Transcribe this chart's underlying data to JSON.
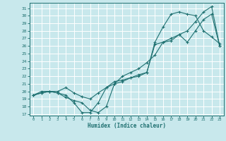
{
  "xlabel": "Humidex (Indice chaleur)",
  "background_color": "#c8e8ec",
  "grid_color": "#ffffff",
  "line_color": "#1e7070",
  "xlim": [
    -0.5,
    23.5
  ],
  "ylim": [
    16.8,
    31.7
  ],
  "xticks": [
    0,
    1,
    2,
    3,
    4,
    5,
    6,
    7,
    8,
    9,
    10,
    11,
    12,
    13,
    14,
    15,
    16,
    17,
    18,
    19,
    20,
    21,
    22,
    23
  ],
  "yticks": [
    17,
    18,
    19,
    20,
    21,
    22,
    23,
    24,
    25,
    26,
    27,
    28,
    29,
    30,
    31
  ],
  "line1_x": [
    0,
    1,
    2,
    3,
    4,
    5,
    6,
    7,
    8,
    9,
    10,
    11,
    12,
    13,
    14,
    15,
    16,
    17,
    18,
    19,
    20,
    21,
    22,
    23
  ],
  "line1_y": [
    19.5,
    20.0,
    20.0,
    19.8,
    19.5,
    18.5,
    17.2,
    17.2,
    18.5,
    20.5,
    21.3,
    21.5,
    21.8,
    22.0,
    22.5,
    26.2,
    26.5,
    26.7,
    27.5,
    26.5,
    28.0,
    29.5,
    30.2,
    26.0
  ],
  "line2_x": [
    0,
    1,
    2,
    3,
    4,
    5,
    6,
    7,
    8,
    9,
    10,
    11,
    12,
    13,
    14,
    15,
    16,
    17,
    18,
    19,
    20,
    21,
    22,
    23
  ],
  "line2_y": [
    19.5,
    19.8,
    20.0,
    19.8,
    19.2,
    18.8,
    18.5,
    17.5,
    17.2,
    18.0,
    21.0,
    21.3,
    21.8,
    22.2,
    22.5,
    26.5,
    28.5,
    30.2,
    30.5,
    30.2,
    30.0,
    28.0,
    27.2,
    26.3
  ],
  "line3_x": [
    0,
    1,
    2,
    3,
    4,
    5,
    6,
    7,
    8,
    9,
    10,
    11,
    12,
    13,
    14,
    15,
    16,
    17,
    18,
    19,
    20,
    21,
    22,
    23
  ],
  "line3_y": [
    19.5,
    19.8,
    20.0,
    20.0,
    20.5,
    19.8,
    19.3,
    19.0,
    19.8,
    20.5,
    21.0,
    22.0,
    22.5,
    23.0,
    23.8,
    24.8,
    26.5,
    27.0,
    27.5,
    28.0,
    29.2,
    30.5,
    31.2,
    26.0
  ]
}
